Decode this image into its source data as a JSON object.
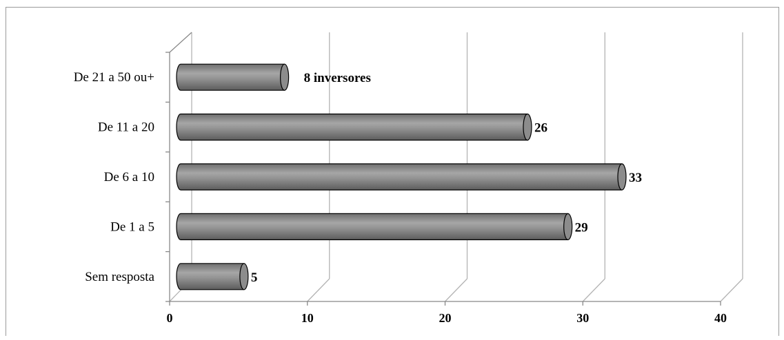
{
  "chart_data": {
    "type": "bar",
    "orientation": "horizontal",
    "style": "3d-cylinder",
    "title": "",
    "xlabel": "",
    "ylabel": "",
    "categories": [
      "Sem resposta",
      "De 1 a 5",
      "De 6 a 10",
      "De 11 a 20",
      "De 21 a  50 ou+"
    ],
    "values": [
      5,
      29,
      33,
      26,
      8
    ],
    "data_labels": [
      "5",
      "29",
      "33",
      "26",
      "8 inversores"
    ],
    "xlim": [
      0,
      40
    ],
    "xticks": [
      0,
      10,
      20,
      30,
      40
    ],
    "xtick_labels": [
      "0",
      "10",
      "20",
      "30",
      "40"
    ],
    "grid": true,
    "legend": false,
    "colors": {
      "bar_fill": "#8c8c8c",
      "bar_highlight": "#b4b4b4",
      "bar_outline": "#000000",
      "grid": "#b3b3b3",
      "axis": "#888888"
    }
  }
}
